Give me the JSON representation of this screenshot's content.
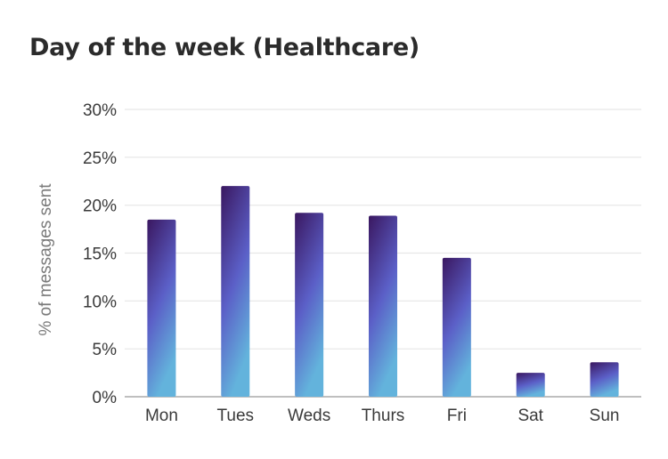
{
  "chart_data": {
    "type": "bar",
    "title": "Day of the week (Healthcare)",
    "ylabel": "% of messages sent",
    "xlabel": "",
    "categories": [
      "Mon",
      "Tues",
      "Weds",
      "Thurs",
      "Fri",
      "Sat",
      "Sun"
    ],
    "values": [
      18.5,
      22.0,
      19.2,
      18.9,
      14.5,
      2.5,
      3.6
    ],
    "ylim": [
      0,
      30
    ],
    "yticks": [
      0,
      5,
      10,
      15,
      20,
      25,
      30
    ],
    "ytick_labels": [
      "0%",
      "5%",
      "10%",
      "15%",
      "20%",
      "25%",
      "30%"
    ],
    "grid": true,
    "legend": "none",
    "colors": {
      "bar_top": "#3a1760",
      "bar_mid": "#5b5fc7",
      "bar_bottom": "#63b3dc",
      "grid": "#e6e6e6",
      "axis": "#aaaaaa"
    }
  }
}
